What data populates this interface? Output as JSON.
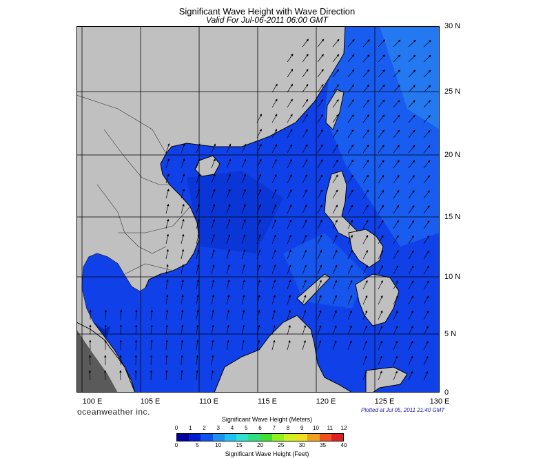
{
  "title": "Significant Wave Height with Wave Direction",
  "subtitle": "Valid For Jul-06-2011 06:00 GMT",
  "lat_labels": [
    "30 N",
    "25 N",
    "20 N",
    "15 N",
    "10 N",
    "5 N",
    "0"
  ],
  "lon_labels": [
    "100 E",
    "105 E",
    "110 E",
    "115 E",
    "120 E",
    "125 E",
    "130 E"
  ],
  "brand": "oceanweather inc.",
  "plotted": "Plotted at Jul 05, 2011 21:40 GMT",
  "colorbar": {
    "title_top": "Significant Wave Height (Meters)",
    "title_bottom": "Significant Wave Height (Feet)",
    "meters": [
      "0",
      "1",
      "2",
      "3",
      "4",
      "5",
      "6",
      "7",
      "8",
      "9",
      "10",
      "11",
      "12"
    ],
    "feet": [
      "0",
      "5",
      "10",
      "15",
      "20",
      "25",
      "30",
      "35",
      "40"
    ],
    "colors": [
      "#0000a0",
      "#0020d0",
      "#1050f0",
      "#2090f0",
      "#20c0f0",
      "#30e0d0",
      "#30e080",
      "#40e030",
      "#90f020",
      "#d0f020",
      "#f0e020",
      "#f0a020",
      "#f05020",
      "#e02020"
    ]
  },
  "map": {
    "region": "South China Sea",
    "lon_range": [
      99,
      130
    ],
    "lat_range": [
      0,
      30
    ],
    "land_color": "#c0c0c0",
    "sea_color": "#1040e8",
    "wave_direction": "toward north-northeast"
  }
}
